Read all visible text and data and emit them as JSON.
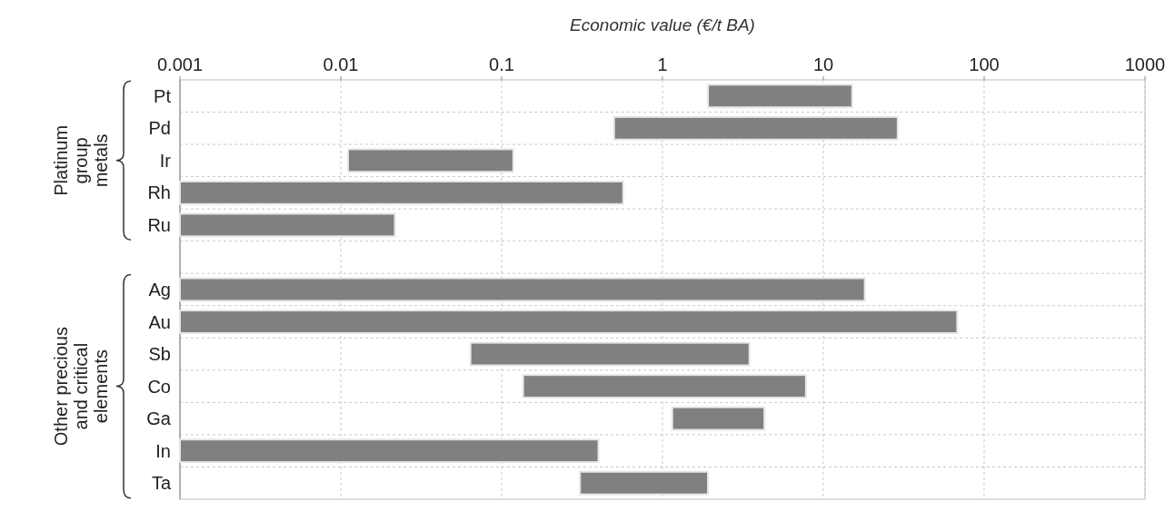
{
  "chart_data": {
    "type": "bar",
    "orientation": "horizontal",
    "xlabel": "Economic value (€/t BA)",
    "log": "x",
    "grid": true,
    "categories": [
      "Pt",
      "Pd",
      "Ir",
      "Rh",
      "Ru",
      null,
      "Ag",
      "Au",
      "Sb",
      "Co",
      "Ga",
      "In",
      "Ta"
    ],
    "base": [
      1.92,
      0.5,
      0.0111,
      0.001,
      0.001,
      null,
      0.001,
      0.001,
      0.064,
      0.136,
      1.15,
      0.001,
      0.307
    ],
    "values": [
      13.2,
      28.5,
      0.107,
      0.569,
      0.0207,
      null,
      18.1,
      68,
      3.41,
      7.66,
      3.15,
      0.399,
      1.61
    ],
    "color": "#808080",
    "xlim": [
      0.001,
      1000
    ],
    "xticks": [
      0.001,
      0.01,
      0.1,
      1,
      10,
      100,
      1000
    ],
    "annotations": [
      "Platinum group metals",
      "Other precious and critical elements"
    ]
  }
}
